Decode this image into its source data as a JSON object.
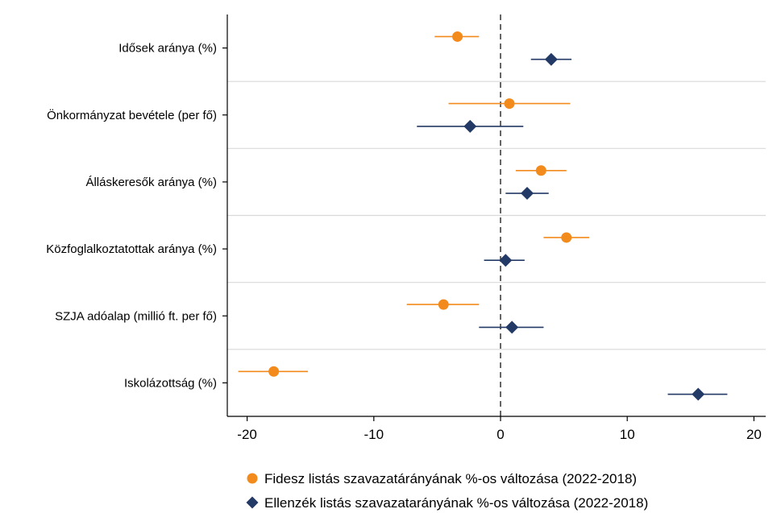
{
  "chart_data": {
    "type": "scatter",
    "subtype": "coefficient-plot",
    "title": "",
    "xlabel": "",
    "ylabel": "",
    "xlim": [
      -21,
      21
    ],
    "xticks": [
      -20,
      -10,
      0,
      10,
      20
    ],
    "xtick_labels": [
      "-20",
      "-10",
      "0",
      "10",
      "20"
    ],
    "reference_line": 0,
    "grid": "horizontal separators between categories",
    "legend_position": "bottom",
    "categories": [
      "Idősek aránya (%)",
      "Önkormányzat bevétele (per fő)",
      "Álláskeresők aránya (%)",
      "Közfoglalkoztatottak aránya (%)",
      "SZJA adóalap (millió ft. per fő)",
      "Iskolázottság (%)"
    ],
    "series": [
      {
        "name": "Fidesz listás szavazatárányának %-os változása (2022-2018)",
        "marker": "circle",
        "color": "#f28a1c",
        "estimates": [
          -3.4,
          0.7,
          3.2,
          5.2,
          -4.5,
          -17.9
        ],
        "ci_low": [
          -5.2,
          -4.1,
          1.2,
          3.4,
          -7.4,
          -20.7
        ],
        "ci_high": [
          -1.7,
          5.5,
          5.2,
          7.0,
          -1.7,
          -15.2
        ]
      },
      {
        "name": "Ellenzék listás szavazatarányának %-os változása (2022-2018)",
        "marker": "diamond",
        "color": "#233a66",
        "estimates": [
          4.0,
          -2.4,
          2.1,
          0.4,
          0.9,
          15.6
        ],
        "ci_low": [
          2.4,
          -6.6,
          0.4,
          -1.3,
          -1.7,
          13.2
        ],
        "ci_high": [
          5.6,
          1.8,
          3.8,
          1.9,
          3.4,
          17.9
        ]
      }
    ]
  }
}
